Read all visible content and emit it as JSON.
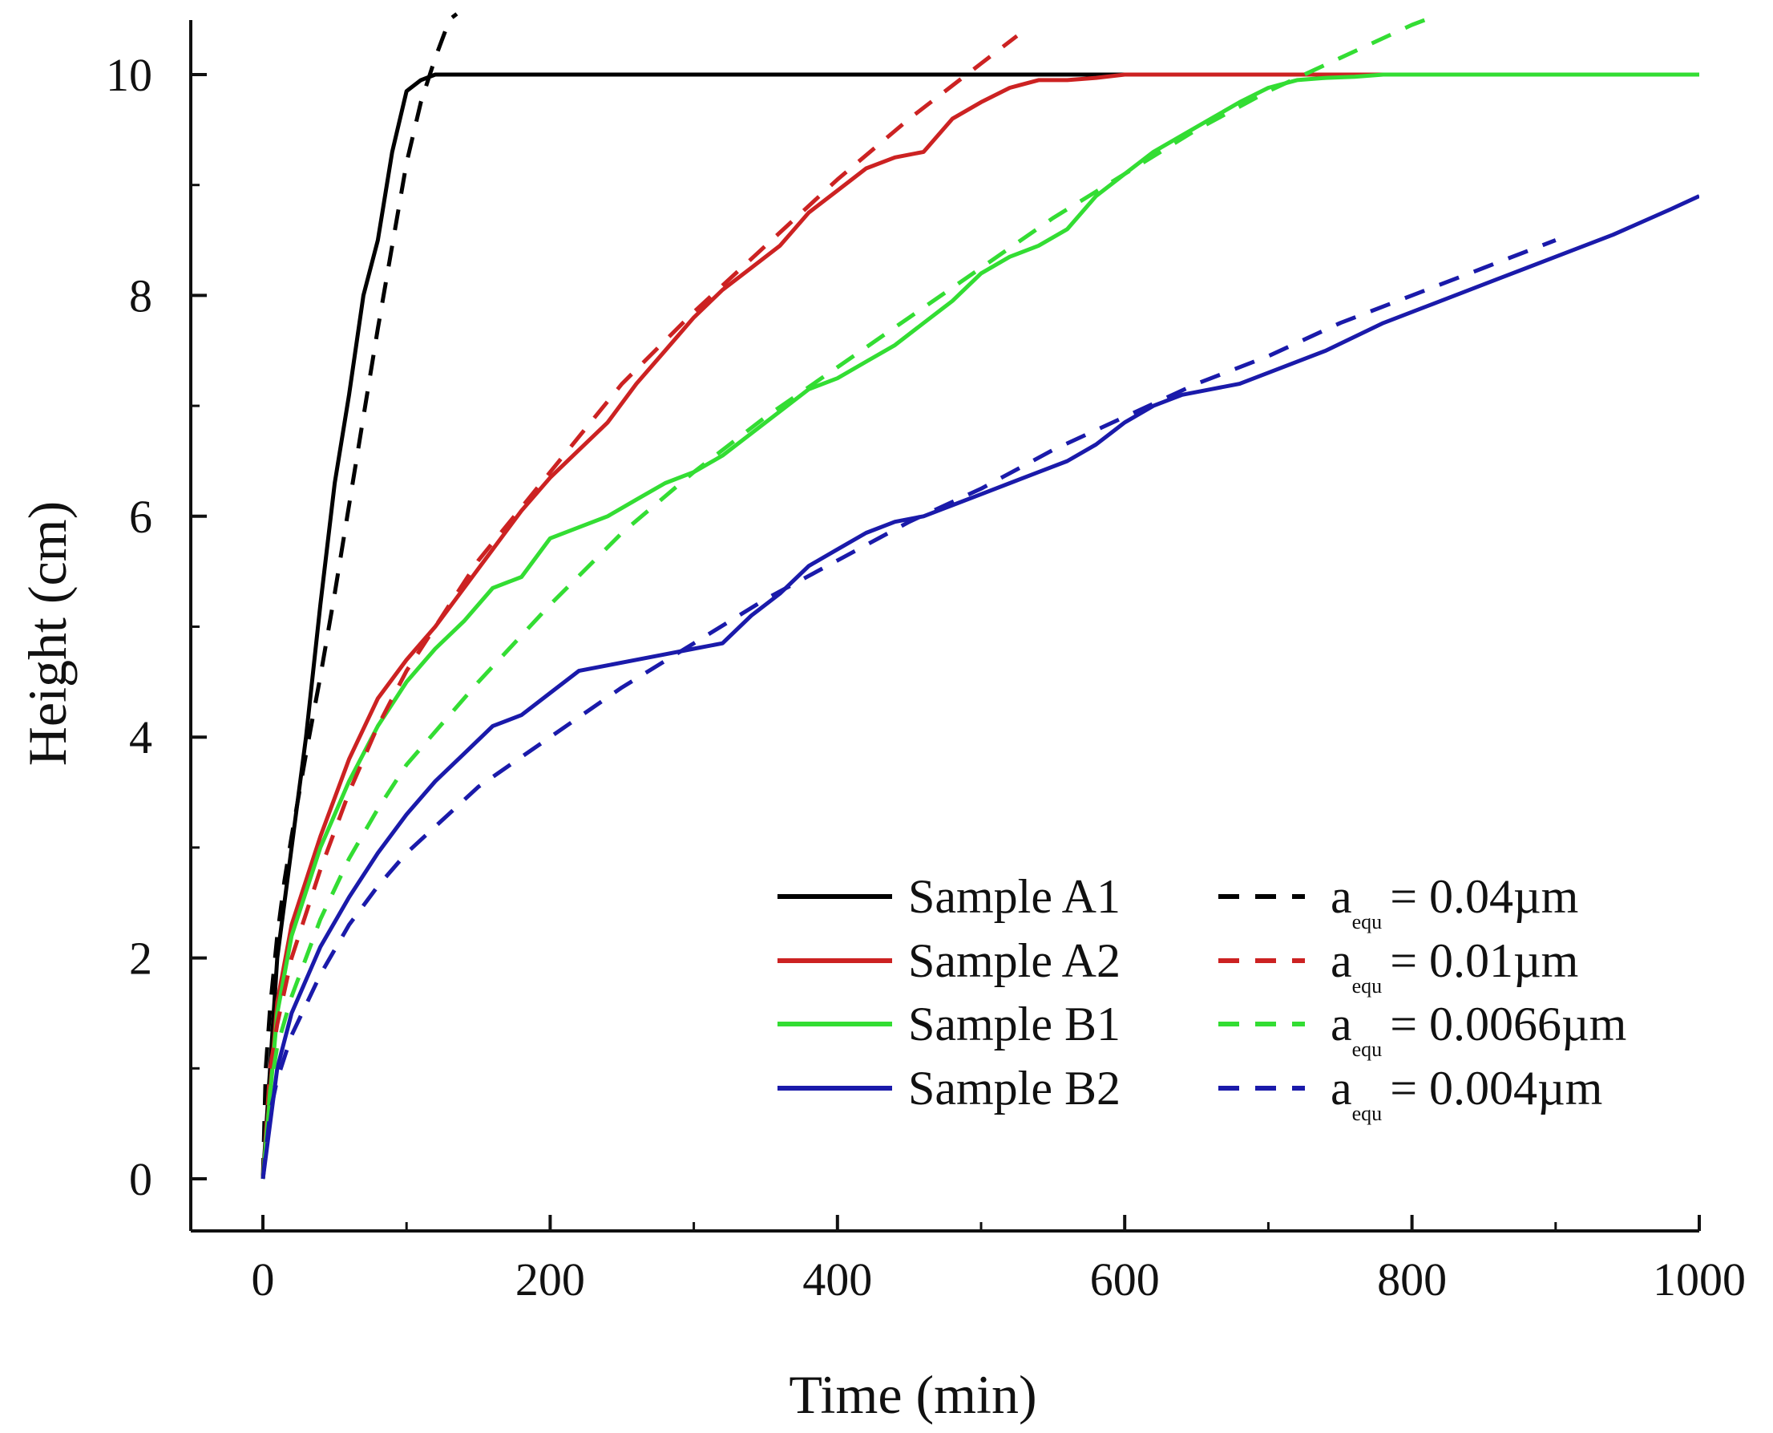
{
  "chart_data": {
    "type": "line",
    "title": "",
    "xlabel": "Time (min)",
    "ylabel": "Height (cm)",
    "xlim": [
      -50,
      1000
    ],
    "ylim": [
      -0.5,
      10.5
    ],
    "xticks": [
      0,
      200,
      400,
      600,
      800,
      1000
    ],
    "yticks": [
      0,
      2,
      4,
      6,
      8,
      10
    ],
    "xtick_labels": [
      "0",
      "200",
      "400",
      "600",
      "800",
      "1000"
    ],
    "ytick_labels": [
      "0",
      "2",
      "4",
      "6",
      "8",
      "10"
    ],
    "grid": false,
    "legend_position": "bottom-right",
    "series": [
      {
        "name": "Sample A1",
        "style": "solid",
        "color": "#000000",
        "x": [
          0,
          5,
          10,
          20,
          30,
          40,
          50,
          60,
          70,
          80,
          90,
          100,
          110,
          120,
          1000
        ],
        "y": [
          0,
          1.0,
          2.0,
          3.0,
          4.0,
          5.2,
          6.3,
          7.1,
          8.0,
          8.5,
          9.3,
          9.85,
          9.95,
          10.0,
          10.0
        ]
      },
      {
        "name": "Sample A2",
        "style": "solid",
        "color": "#cc2222",
        "x": [
          0,
          10,
          20,
          40,
          60,
          80,
          100,
          120,
          140,
          160,
          180,
          200,
          220,
          240,
          260,
          280,
          300,
          320,
          340,
          360,
          380,
          400,
          420,
          440,
          460,
          480,
          500,
          520,
          540,
          560,
          580,
          600,
          620,
          1000
        ],
        "y": [
          0,
          1.6,
          2.3,
          3.1,
          3.8,
          4.35,
          4.7,
          5.0,
          5.35,
          5.7,
          6.05,
          6.35,
          6.6,
          6.85,
          7.2,
          7.5,
          7.8,
          8.05,
          8.25,
          8.45,
          8.75,
          8.95,
          9.15,
          9.25,
          9.3,
          9.6,
          9.75,
          9.88,
          9.95,
          9.95,
          9.97,
          10.0,
          10.0,
          10.0
        ]
      },
      {
        "name": "Sample B1",
        "style": "solid",
        "color": "#33dd33",
        "x": [
          0,
          10,
          20,
          40,
          60,
          80,
          100,
          120,
          140,
          160,
          180,
          200,
          220,
          240,
          260,
          280,
          300,
          320,
          340,
          360,
          380,
          400,
          420,
          440,
          460,
          480,
          500,
          520,
          540,
          560,
          580,
          600,
          620,
          640,
          660,
          680,
          700,
          720,
          740,
          760,
          780,
          1000
        ],
        "y": [
          0,
          1.5,
          2.2,
          3.0,
          3.6,
          4.1,
          4.5,
          4.8,
          5.05,
          5.35,
          5.45,
          5.8,
          5.9,
          6.0,
          6.15,
          6.3,
          6.4,
          6.55,
          6.75,
          6.95,
          7.15,
          7.25,
          7.4,
          7.55,
          7.75,
          7.95,
          8.2,
          8.35,
          8.45,
          8.6,
          8.9,
          9.1,
          9.3,
          9.45,
          9.6,
          9.75,
          9.88,
          9.95,
          9.97,
          9.98,
          10.0,
          10.0
        ]
      },
      {
        "name": "Sample B2",
        "style": "solid",
        "color": "#1a1aaa",
        "x": [
          0,
          10,
          20,
          40,
          60,
          80,
          100,
          120,
          140,
          160,
          180,
          200,
          220,
          240,
          260,
          280,
          300,
          320,
          340,
          360,
          380,
          400,
          420,
          440,
          460,
          480,
          500,
          520,
          540,
          560,
          580,
          600,
          620,
          640,
          660,
          680,
          700,
          740,
          780,
          820,
          860,
          900,
          940,
          980,
          1000
        ],
        "y": [
          0,
          1.0,
          1.5,
          2.1,
          2.55,
          2.95,
          3.3,
          3.6,
          3.85,
          4.1,
          4.2,
          4.4,
          4.6,
          4.65,
          4.7,
          4.75,
          4.8,
          4.85,
          5.1,
          5.3,
          5.55,
          5.7,
          5.85,
          5.95,
          6.0,
          6.1,
          6.2,
          6.3,
          6.4,
          6.5,
          6.65,
          6.85,
          7.0,
          7.1,
          7.15,
          7.2,
          7.3,
          7.5,
          7.75,
          7.95,
          8.15,
          8.35,
          8.55,
          8.78,
          8.9
        ]
      },
      {
        "name": "a_equ = 0.04µm",
        "style": "dashed",
        "color": "#000000",
        "x": [
          0,
          2,
          5,
          10,
          15,
          20,
          30,
          40,
          50,
          60,
          70,
          80,
          90,
          100,
          110,
          120,
          130,
          135
        ],
        "y": [
          0,
          1.0,
          1.55,
          2.2,
          2.7,
          3.1,
          3.85,
          4.55,
          5.3,
          6.1,
          6.9,
          7.7,
          8.45,
          9.2,
          9.75,
          10.15,
          10.5,
          10.55
        ]
      },
      {
        "name": "a_equ = 0.01µm",
        "style": "dashed",
        "color": "#cc2222",
        "x": [
          0,
          5,
          10,
          20,
          40,
          60,
          80,
          100,
          150,
          200,
          250,
          300,
          350,
          400,
          450,
          500,
          525
        ],
        "y": [
          0,
          1.0,
          1.4,
          2.0,
          2.8,
          3.5,
          4.1,
          4.6,
          5.6,
          6.4,
          7.2,
          7.85,
          8.45,
          9.05,
          9.6,
          10.1,
          10.35
        ]
      },
      {
        "name": "a_equ = 0.0066µm",
        "style": "dashed",
        "color": "#33dd33",
        "x": [
          0,
          5,
          10,
          20,
          40,
          60,
          80,
          100,
          150,
          200,
          250,
          300,
          350,
          400,
          450,
          500,
          550,
          600,
          650,
          700,
          750,
          800,
          810
        ],
        "y": [
          0,
          0.8,
          1.2,
          1.65,
          2.35,
          2.9,
          3.35,
          3.75,
          4.5,
          5.2,
          5.85,
          6.4,
          6.9,
          7.35,
          7.8,
          8.25,
          8.7,
          9.1,
          9.5,
          9.85,
          10.15,
          10.45,
          10.5
        ]
      },
      {
        "name": "a_equ = 0.004µm",
        "style": "dashed",
        "color": "#1a1aaa",
        "x": [
          0,
          5,
          10,
          20,
          40,
          60,
          80,
          100,
          150,
          200,
          250,
          300,
          350,
          400,
          450,
          500,
          550,
          600,
          650,
          700,
          750,
          800,
          850,
          900
        ],
        "y": [
          0,
          0.6,
          0.9,
          1.3,
          1.85,
          2.3,
          2.65,
          2.95,
          3.55,
          4.0,
          4.45,
          4.85,
          5.25,
          5.6,
          5.95,
          6.25,
          6.6,
          6.9,
          7.2,
          7.45,
          7.75,
          8.0,
          8.25,
          8.5
        ]
      }
    ],
    "legend": [
      {
        "text": "Sample A1",
        "color": "#000000",
        "style": "solid"
      },
      {
        "text": "Sample A2",
        "color": "#cc2222",
        "style": "solid"
      },
      {
        "text": "Sample B1",
        "color": "#33dd33",
        "style": "solid"
      },
      {
        "text": "Sample B2",
        "color": "#1a1aaa",
        "style": "solid"
      },
      {
        "prefix": "a",
        "sub": "equ",
        "text": "= 0.04µm",
        "color": "#000000",
        "style": "dashed"
      },
      {
        "prefix": "a",
        "sub": "equ",
        "text": "= 0.01µm",
        "color": "#cc2222",
        "style": "dashed"
      },
      {
        "prefix": "a",
        "sub": "equ",
        "text": "= 0.0066µm",
        "color": "#33dd33",
        "style": "dashed"
      },
      {
        "prefix": "a",
        "sub": "equ",
        "text": "= 0.004µm",
        "color": "#1a1aaa",
        "style": "dashed"
      }
    ]
  }
}
